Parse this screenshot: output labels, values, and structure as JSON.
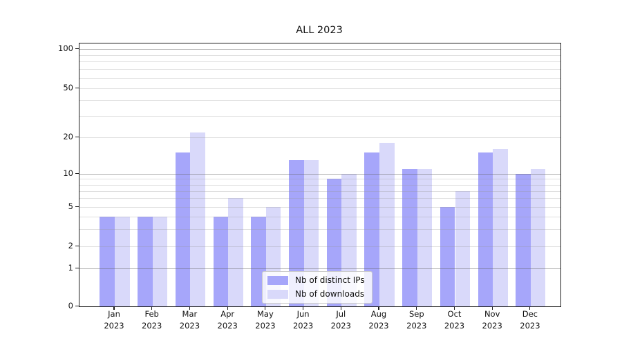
{
  "title": "ALL 2023",
  "legend": {
    "items": [
      {
        "label": "Nb of distinct IPs",
        "color": "#a6a6fa"
      },
      {
        "label": "Nb of downloads",
        "color": "#d9d9fa"
      }
    ]
  },
  "chart_data": {
    "type": "bar",
    "title": "ALL 2023",
    "categories": [
      {
        "line1": "Jan",
        "line2": "2023"
      },
      {
        "line1": "Feb",
        "line2": "2023"
      },
      {
        "line1": "Mar",
        "line2": "2023"
      },
      {
        "line1": "Apr",
        "line2": "2023"
      },
      {
        "line1": "May",
        "line2": "2023"
      },
      {
        "line1": "Jun",
        "line2": "2023"
      },
      {
        "line1": "Jul",
        "line2": "2023"
      },
      {
        "line1": "Aug",
        "line2": "2023"
      },
      {
        "line1": "Sep",
        "line2": "2023"
      },
      {
        "line1": "Oct",
        "line2": "2023"
      },
      {
        "line1": "Nov",
        "line2": "2023"
      },
      {
        "line1": "Dec",
        "line2": "2023"
      }
    ],
    "series": [
      {
        "name": "Nb of distinct IPs",
        "color": "#a6a6fa",
        "values": [
          4,
          4,
          15,
          4,
          4,
          13,
          9,
          15,
          11,
          5,
          15,
          10
        ]
      },
      {
        "name": "Nb of downloads",
        "color": "#d9d9fa",
        "values": [
          4,
          4,
          22,
          6,
          5,
          13,
          10,
          18,
          11,
          7,
          16,
          11
        ]
      }
    ],
    "xlabel": "",
    "ylabel": "",
    "yscale": "log-like",
    "ytick_labels": [
      100,
      50,
      20,
      10,
      5,
      2,
      1,
      0
    ],
    "ylim": [
      0,
      115
    ],
    "grid": true,
    "gridline_major_values": [
      1,
      10,
      100
    ],
    "gridline_minor_values": [
      2,
      3,
      4,
      5,
      6,
      7,
      8,
      9,
      20,
      30,
      40,
      50,
      60,
      70,
      80,
      90
    ],
    "legend_position": "lower center"
  }
}
